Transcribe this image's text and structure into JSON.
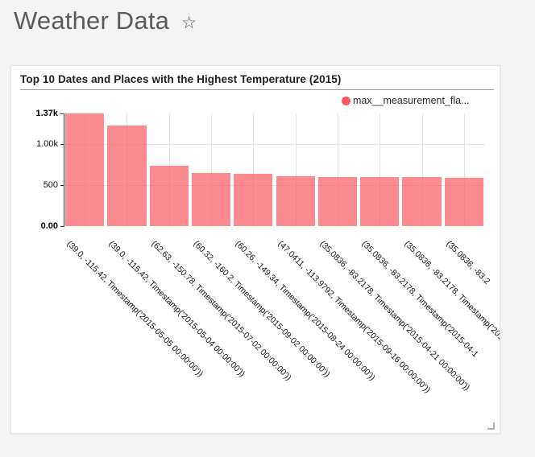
{
  "page": {
    "title": "Weather Data",
    "background_color": "#f4f4f4"
  },
  "icons": {
    "favorite_star": "☆"
  },
  "card": {
    "title": "Top 10 Dates and Places with the Highest Temperature (2015)"
  },
  "legend": {
    "label": "max__measurement_fla...",
    "dot_color": "#fa5a60"
  },
  "chart_data": {
    "type": "bar",
    "title": "Top 10 Dates and Places with the Highest Temperature (2015)",
    "legend": [
      "max__measurement_fla..."
    ],
    "legend_position": "top-right",
    "bar_color": "#fa5a60",
    "bar_opacity": 0.7,
    "grid": true,
    "x_label_rotation_deg": 45,
    "ylim": [
      0,
      1370
    ],
    "y_ticks": [
      {
        "label": "1.37k",
        "value": 1370,
        "bold": true
      },
      {
        "label": "1.00k",
        "value": 1000,
        "bold": false
      },
      {
        "label": "500",
        "value": 500,
        "bold": false
      },
      {
        "label": "0.00",
        "value": 0,
        "bold": true
      }
    ],
    "categories": [
      "(39.0, -115.42, Timestamp('2015-05-05 00:00:00'))",
      "(39.0, -115.42, Timestamp('2015-05-04 00:00:00'))",
      "(62.63, -150.78, Timestamp('2015-07-02 00:00:00'))",
      "(60.32, -160.2, Timestamp('2015-09-02 00:00:00'))",
      "(60.26, -149.34, Timestamp('2015-08-24 00:00:00'))",
      "(47.0411, -113.9792, Timestamp('2015-09-16 00:00:00'))",
      "(35.0836, -83.2178, Timestamp('2015-04-21 00:00:00'))",
      "(35.0836, -83.2178, Timestamp('2015-04-1",
      "(35.0836, -83.2178, Timestamp('2015",
      "(35.0836, -83.2"
    ],
    "values": [
      1370,
      1220,
      735,
      650,
      640,
      605,
      600,
      600,
      595,
      590
    ]
  }
}
